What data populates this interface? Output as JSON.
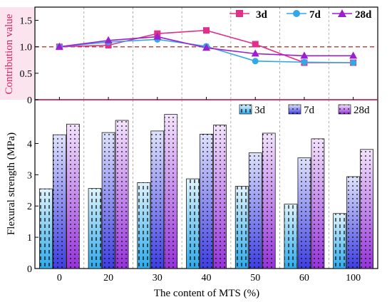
{
  "chart_data": [
    {
      "type": "line",
      "title": "",
      "xlabel": "",
      "ylabel": "Contribution value",
      "categories": [
        "0",
        "20",
        "30",
        "40",
        "50",
        "60",
        "100"
      ],
      "ylim": [
        0,
        1.75
      ],
      "yticks": [
        "0",
        "0.5",
        "1.0",
        "1.5"
      ],
      "reference_line": 1.0,
      "grid": "vertical dashed",
      "legend": "top-right",
      "series": [
        {
          "name": "3d",
          "marker": "square",
          "color": "#e0308a",
          "values": [
            1.0,
            1.03,
            1.25,
            1.31,
            1.05,
            0.7,
            0.7
          ]
        },
        {
          "name": "7d",
          "marker": "circle",
          "color": "#33a8e6",
          "values": [
            1.0,
            1.09,
            1.14,
            1.01,
            0.73,
            0.71,
            0.7
          ]
        },
        {
          "name": "28d",
          "marker": "triangle",
          "color": "#9b1fd1",
          "values": [
            1.0,
            1.12,
            1.19,
            0.98,
            0.87,
            0.83,
            0.83
          ]
        }
      ]
    },
    {
      "type": "bar",
      "title": "",
      "xlabel": "The content of MTS (%)",
      "ylabel": "Flexural strength (MPa)",
      "categories": [
        "0",
        "20",
        "30",
        "40",
        "50",
        "60",
        "100"
      ],
      "ylim": [
        0,
        5.4
      ],
      "yticks": [
        "0",
        "1",
        "2",
        "3",
        "4"
      ],
      "grid": "vertical dashed",
      "legend": "top-right",
      "series": [
        {
          "name": "3d",
          "pattern": "dashes",
          "color": "#5bc3ee",
          "values": [
            2.55,
            2.56,
            2.75,
            2.87,
            2.63,
            2.06,
            1.76
          ]
        },
        {
          "name": "7d",
          "pattern": "dots",
          "color": "#5c63ee",
          "values": [
            4.28,
            4.35,
            4.4,
            4.3,
            3.7,
            3.54,
            2.94
          ]
        },
        {
          "name": "28d",
          "pattern": "dots",
          "color": "#a94fe0",
          "values": [
            4.62,
            4.74,
            4.93,
            4.59,
            4.33,
            4.15,
            3.81
          ]
        }
      ]
    }
  ]
}
